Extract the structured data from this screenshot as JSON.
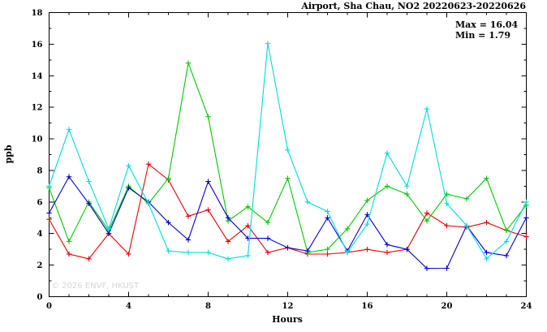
{
  "title": "Airport, Sha Chau, NO2 20220623-20220626",
  "annotations": {
    "max": "Max = 16.04",
    "min": "Min =  1.79"
  },
  "watermark": "© 2026 ENVF, HKUST",
  "colors": {
    "axis": "#000000",
    "background": "#ffffff",
    "watermark": "#d4d4d4"
  },
  "chart_data": {
    "type": "line",
    "title": "Airport, Sha Chau, NO2 20220623-20220626",
    "xlabel": "Hours",
    "ylabel": "ppb",
    "xlim": [
      0,
      24
    ],
    "ylim": [
      0,
      18
    ],
    "xticks": [
      0,
      4,
      8,
      12,
      16,
      20,
      24
    ],
    "yticks": [
      0,
      2,
      4,
      6,
      8,
      10,
      12,
      14,
      16,
      18
    ],
    "x_minor_step": 1,
    "y_minor_step": 1,
    "grid": false,
    "legend": "none",
    "marker": "plus",
    "x": [
      0,
      1,
      2,
      3,
      4,
      5,
      6,
      7,
      8,
      9,
      10,
      11,
      12,
      13,
      14,
      15,
      16,
      17,
      18,
      19,
      20,
      21,
      22,
      23,
      24
    ],
    "series": [
      {
        "name": "red",
        "color": "#ee0000",
        "values": [
          4.9,
          2.7,
          2.4,
          4.0,
          2.7,
          8.4,
          7.4,
          5.1,
          5.5,
          3.5,
          4.5,
          2.8,
          3.1,
          2.7,
          2.7,
          2.8,
          3.0,
          2.8,
          3.0,
          5.3,
          4.5,
          4.4,
          4.7,
          4.2,
          3.8
        ]
      },
      {
        "name": "green",
        "color": "#00cc00",
        "values": [
          6.9,
          3.5,
          6.0,
          4.2,
          7.0,
          5.9,
          7.5,
          14.8,
          11.4,
          4.8,
          5.7,
          4.7,
          7.5,
          2.8,
          3.0,
          4.3,
          6.1,
          7.0,
          6.5,
          4.8,
          6.5,
          6.2,
          7.5,
          4.2,
          5.8
        ]
      },
      {
        "name": "blue",
        "color": "#0000dd",
        "values": [
          5.3,
          7.6,
          5.9,
          4.0,
          6.9,
          6.0,
          4.7,
          3.6,
          7.3,
          5.0,
          3.7,
          3.7,
          3.1,
          2.9,
          5.0,
          2.9,
          5.2,
          3.3,
          3.0,
          1.79,
          1.8,
          4.5,
          2.8,
          2.6,
          5.0
        ]
      },
      {
        "name": "cyan",
        "color": "#00dddd",
        "values": [
          7.0,
          10.6,
          7.3,
          4.3,
          8.3,
          5.9,
          2.9,
          2.8,
          2.8,
          2.4,
          2.6,
          16.04,
          9.3,
          6.0,
          5.4,
          2.8,
          4.6,
          9.1,
          7.0,
          11.9,
          5.9,
          4.5,
          2.4,
          3.5,
          6.0
        ]
      }
    ]
  }
}
